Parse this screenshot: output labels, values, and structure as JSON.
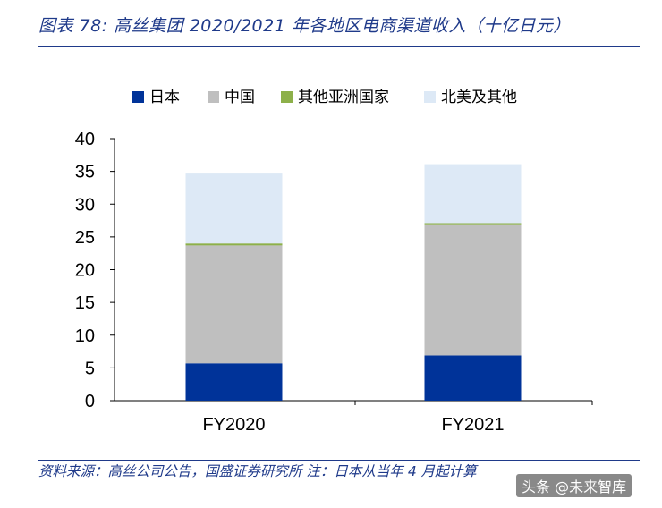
{
  "header": {
    "title": "图表 78:  高丝集团 2020/2021 年各地区电商渠道收入（十亿日元）"
  },
  "footer": {
    "source": "资料来源：高丝公司公告，国盛证券研究所  注：日本从当年 4 月起计算"
  },
  "watermark": {
    "text": "头条 @未来智库"
  },
  "chart_data": {
    "type": "bar",
    "stacked": true,
    "categories": [
      "FY2020",
      "FY2021"
    ],
    "series": [
      {
        "name": "日本",
        "color": "#003399",
        "values": [
          5.7,
          6.9
        ]
      },
      {
        "name": "中国",
        "color": "#bfbfbf",
        "values": [
          18.0,
          19.9
        ]
      },
      {
        "name": "其他亚洲国家",
        "color": "#8db04a",
        "values": [
          0.3,
          0.3
        ]
      },
      {
        "name": "北美及其他",
        "color": "#dde9f6",
        "values": [
          10.8,
          9.0
        ]
      }
    ],
    "ylim": [
      0,
      40
    ],
    "yticks": [
      "0",
      "5",
      "10",
      "15",
      "20",
      "25",
      "30",
      "35",
      "40"
    ],
    "legend_position": "top",
    "grid": false
  }
}
